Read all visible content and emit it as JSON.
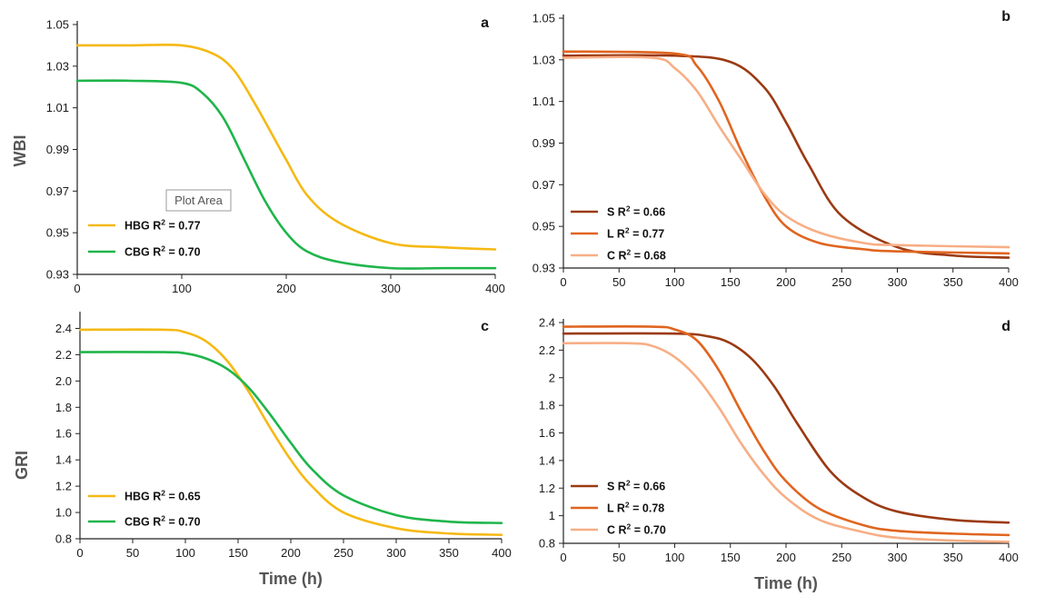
{
  "tooltip": {
    "text": "Plot Area"
  },
  "chart_data": [
    {
      "panel": "a",
      "type": "line",
      "ylabel": "WBI",
      "xlabel": "",
      "xlim": [
        0,
        400
      ],
      "ylim": [
        0.93,
        1.05
      ],
      "x_ticks": [
        0,
        100,
        200,
        300,
        400
      ],
      "y_ticks": [
        0.93,
        0.95,
        0.97,
        0.99,
        1.01,
        1.03,
        1.05
      ],
      "y_decimals": 2,
      "legend_position": "bottom-left",
      "series": [
        {
          "name": "HBG",
          "r2": "0.77",
          "color": "#F5B914",
          "x": [
            0,
            50,
            100,
            130,
            150,
            170,
            190,
            200,
            220,
            250,
            300,
            350,
            400
          ],
          "y": [
            1.04,
            1.04,
            1.04,
            1.036,
            1.028,
            1.012,
            0.994,
            0.985,
            0.968,
            0.955,
            0.945,
            0.943,
            0.942
          ]
        },
        {
          "name": "CBG",
          "r2": "0.70",
          "color": "#1FB54A",
          "x": [
            0,
            50,
            100,
            120,
            140,
            160,
            180,
            200,
            220,
            250,
            300,
            350,
            400
          ],
          "y": [
            1.023,
            1.023,
            1.022,
            1.017,
            1.005,
            0.985,
            0.965,
            0.95,
            0.941,
            0.936,
            0.933,
            0.933,
            0.933
          ]
        }
      ]
    },
    {
      "panel": "b",
      "type": "line",
      "ylabel": "",
      "xlabel": "",
      "xlim": [
        0,
        400
      ],
      "ylim": [
        0.93,
        1.05
      ],
      "x_ticks": [
        0,
        50,
        100,
        150,
        200,
        250,
        300,
        350,
        400
      ],
      "y_ticks": [
        0.93,
        0.95,
        0.97,
        0.99,
        1.01,
        1.03,
        1.05
      ],
      "y_decimals": 2,
      "legend_position": "bottom-left",
      "series": [
        {
          "name": "S",
          "r2": "0.66",
          "color": "#9B3A13",
          "x": [
            0,
            100,
            150,
            180,
            200,
            220,
            250,
            300,
            350,
            400
          ],
          "y": [
            1.032,
            1.032,
            1.029,
            1.017,
            1.0,
            0.98,
            0.955,
            0.94,
            0.936,
            0.935
          ]
        },
        {
          "name": "L",
          "r2": "0.77",
          "color": "#E0651F",
          "x": [
            0,
            100,
            120,
            140,
            160,
            180,
            200,
            230,
            270,
            300,
            400
          ],
          "y": [
            1.034,
            1.033,
            1.027,
            1.01,
            0.986,
            0.965,
            0.95,
            0.942,
            0.939,
            0.938,
            0.937
          ]
        },
        {
          "name": "C",
          "r2": "0.68",
          "color": "#F7AE85",
          "x": [
            0,
            80,
            100,
            120,
            140,
            160,
            180,
            200,
            230,
            270,
            300,
            400
          ],
          "y": [
            1.031,
            1.031,
            1.026,
            1.015,
            0.998,
            0.982,
            0.966,
            0.955,
            0.947,
            0.942,
            0.941,
            0.94
          ]
        }
      ]
    },
    {
      "panel": "c",
      "type": "line",
      "ylabel": "GRI",
      "xlabel": "Time (h)",
      "xlim": [
        0,
        400
      ],
      "ylim": [
        0.8,
        2.5
      ],
      "x_ticks": [
        0,
        50,
        100,
        150,
        200,
        250,
        300,
        350,
        400
      ],
      "y_ticks": [
        0.8,
        1.0,
        1.2,
        1.4,
        1.6,
        1.8,
        2.0,
        2.2,
        2.4
      ],
      "y_decimals": 1,
      "legend_position": "bottom-left",
      "series": [
        {
          "name": "HBG",
          "r2": "0.65",
          "color": "#F5B914",
          "x": [
            0,
            80,
            100,
            120,
            140,
            160,
            180,
            200,
            220,
            250,
            300,
            350,
            400
          ],
          "y": [
            2.39,
            2.39,
            2.37,
            2.3,
            2.15,
            1.92,
            1.65,
            1.4,
            1.2,
            1.0,
            0.88,
            0.84,
            0.83
          ]
        },
        {
          "name": "CBG",
          "r2": "0.70",
          "color": "#1FB54A",
          "x": [
            0,
            80,
            100,
            120,
            140,
            160,
            180,
            200,
            220,
            250,
            300,
            350,
            400
          ],
          "y": [
            2.22,
            2.22,
            2.21,
            2.17,
            2.09,
            1.95,
            1.75,
            1.53,
            1.33,
            1.13,
            0.98,
            0.93,
            0.92
          ]
        }
      ]
    },
    {
      "panel": "d",
      "type": "line",
      "ylabel": "",
      "xlabel": "Time (h)",
      "xlim": [
        0,
        400
      ],
      "ylim": [
        0.8,
        2.4
      ],
      "x_ticks": [
        0,
        50,
        100,
        150,
        200,
        250,
        300,
        350,
        400
      ],
      "y_ticks": [
        0.8,
        1.0,
        1.2,
        1.4,
        1.6,
        1.8,
        2.0,
        2.2,
        2.4
      ],
      "y_decimals": -1,
      "legend_position": "bottom-left",
      "series": [
        {
          "name": "S",
          "r2": "0.66",
          "color": "#9B3A13",
          "x": [
            0,
            100,
            130,
            150,
            170,
            190,
            210,
            240,
            270,
            300,
            350,
            400
          ],
          "y": [
            2.32,
            2.32,
            2.3,
            2.25,
            2.13,
            1.93,
            1.67,
            1.32,
            1.13,
            1.03,
            0.97,
            0.95
          ]
        },
        {
          "name": "L",
          "r2": "0.78",
          "color": "#E0651F",
          "x": [
            0,
            80,
            100,
            120,
            140,
            160,
            180,
            200,
            230,
            270,
            300,
            350,
            400
          ],
          "y": [
            2.37,
            2.37,
            2.35,
            2.27,
            2.05,
            1.75,
            1.47,
            1.25,
            1.05,
            0.93,
            0.89,
            0.87,
            0.86
          ]
        },
        {
          "name": "C",
          "r2": "0.70",
          "color": "#F7AE85",
          "x": [
            0,
            60,
            80,
            100,
            120,
            140,
            160,
            180,
            200,
            230,
            270,
            300,
            350,
            400
          ],
          "y": [
            2.25,
            2.25,
            2.23,
            2.15,
            2.0,
            1.78,
            1.52,
            1.3,
            1.13,
            0.97,
            0.88,
            0.84,
            0.82,
            0.81
          ]
        }
      ]
    }
  ]
}
